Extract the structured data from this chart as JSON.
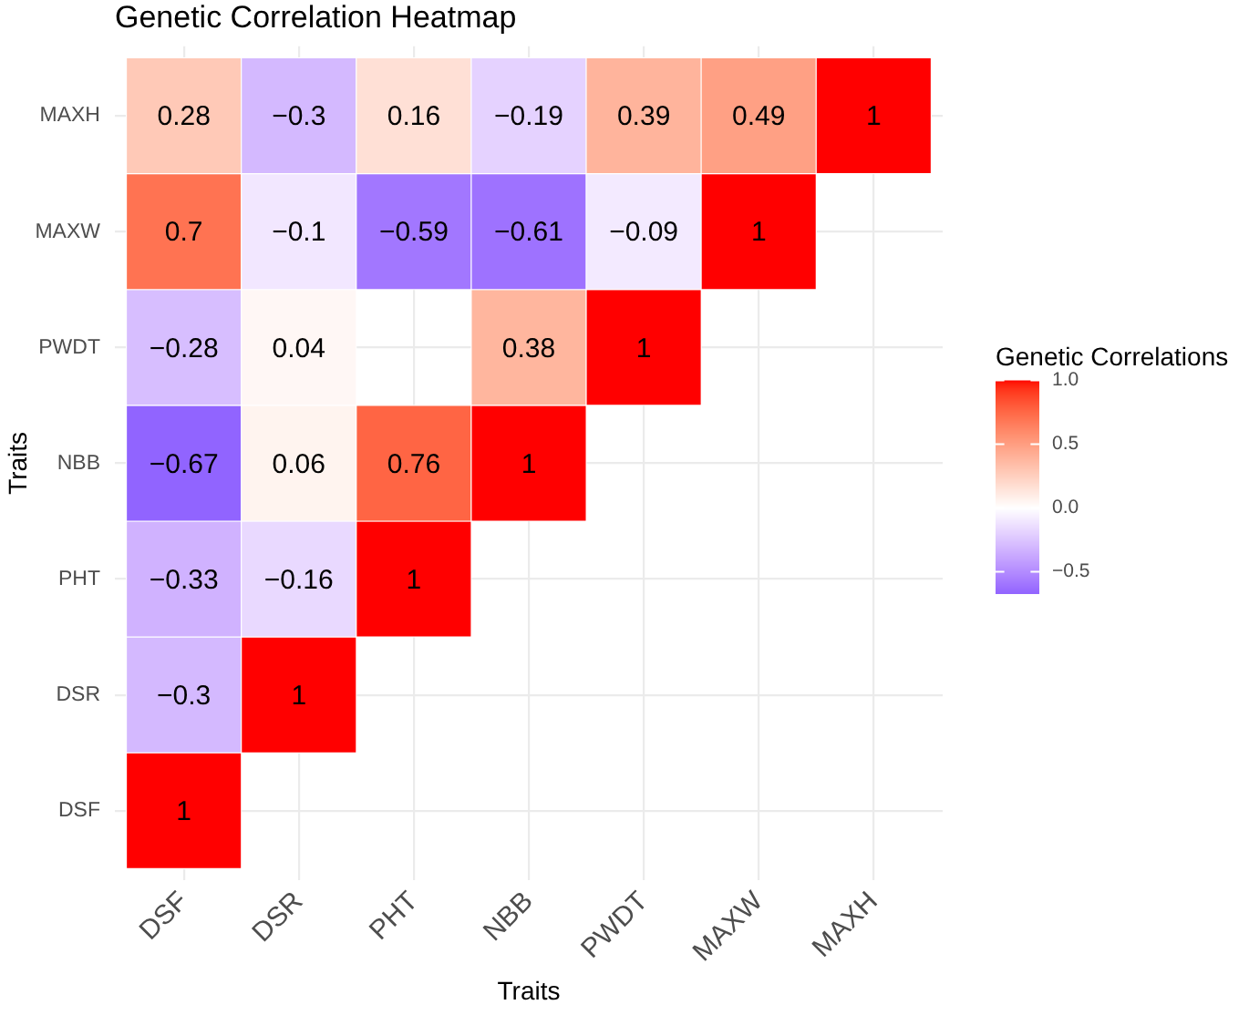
{
  "chart_data": {
    "type": "heatmap",
    "title": "Genetic Correlation Heatmap",
    "xlabel": "Traits",
    "ylabel": "Traits",
    "clabel": "Genetic Correlations",
    "categories": [
      "DSF",
      "DSR",
      "PHT",
      "NBB",
      "PWDT",
      "MAXW",
      "MAXH"
    ],
    "y_categories": [
      "MAXH",
      "MAXW",
      "PWDT",
      "NBB",
      "PHT",
      "DSR",
      "DSF"
    ],
    "cells": [
      [
        0.28,
        -0.3,
        0.16,
        -0.19,
        0.39,
        0.49,
        1
      ],
      [
        0.7,
        -0.1,
        -0.59,
        -0.61,
        -0.09,
        1,
        null
      ],
      [
        -0.28,
        0.04,
        null,
        0.38,
        1,
        null,
        null
      ],
      [
        -0.67,
        0.06,
        0.76,
        1,
        null,
        null,
        null
      ],
      [
        -0.33,
        -0.16,
        1,
        null,
        null,
        null,
        null
      ],
      [
        -0.3,
        1,
        null,
        null,
        null,
        null,
        null
      ],
      [
        1,
        null,
        null,
        null,
        null,
        null,
        null
      ]
    ],
    "cell_labels": [
      [
        "0.28",
        "−0.3",
        "0.16",
        "−0.19",
        "0.39",
        "0.49",
        "1"
      ],
      [
        "0.7",
        "−0.1",
        "−0.59",
        "−0.61",
        "−0.09",
        "1",
        null
      ],
      [
        "−0.28",
        "0.04",
        null,
        "0.38",
        "1",
        null,
        null
      ],
      [
        "−0.67",
        "0.06",
        "0.76",
        "1",
        null,
        null,
        null
      ],
      [
        "−0.33",
        "−0.16",
        "1",
        null,
        null,
        null,
        null
      ],
      [
        "−0.3",
        "1",
        null,
        null,
        null,
        null,
        null
      ],
      [
        "1",
        null,
        null,
        null,
        null,
        null,
        null
      ]
    ],
    "clim": [
      -0.67,
      1
    ],
    "cticks": [
      {
        "value": 1,
        "label": "1.0"
      },
      0.5,
      {
        "value": 0,
        "label": "0.0"
      },
      {
        "value": -0.5,
        "label": "−0.5"
      }
    ],
    "grid": true
  }
}
